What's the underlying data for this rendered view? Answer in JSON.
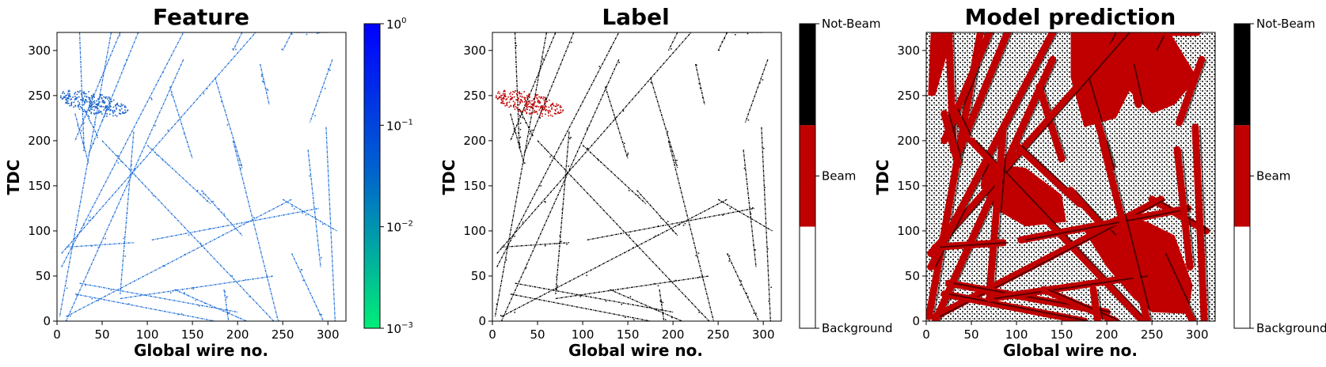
{
  "chart_data": [
    {
      "type": "heatmap",
      "title": "Feature",
      "xlabel": "Global wire no.",
      "ylabel": "TDC",
      "xlim": [
        0,
        320
      ],
      "ylim": [
        0,
        320
      ],
      "xticks": [
        "0",
        "50",
        "100",
        "150",
        "200",
        "250",
        "300"
      ],
      "yticks": [
        "0",
        "50",
        "100",
        "150",
        "200",
        "250",
        "300"
      ],
      "colorbar": {
        "scale": "log",
        "range": [
          0.001,
          1
        ],
        "ticks": [
          {
            "base": "10",
            "exp": "0"
          },
          {
            "base": "10",
            "exp": "−1"
          },
          {
            "base": "10",
            "exp": "−2"
          },
          {
            "base": "10",
            "exp": "−3"
          }
        ],
        "colors": [
          "#00ee77",
          "#0066cc",
          "#0000ff"
        ]
      },
      "hit_color": "#1f6fd8"
    },
    {
      "type": "heatmap",
      "title": "Label",
      "xlabel": "Global wire no.",
      "ylabel": "TDC",
      "xlim": [
        0,
        320
      ],
      "ylim": [
        0,
        320
      ],
      "xticks": [
        "0",
        "50",
        "100",
        "150",
        "200",
        "250",
        "300"
      ],
      "yticks": [
        "0",
        "50",
        "100",
        "150",
        "200",
        "250",
        "300"
      ],
      "colorbar": {
        "categories": [
          {
            "label": "Not-Beam",
            "color": "#000000"
          },
          {
            "label": "Beam",
            "color": "#c00000"
          },
          {
            "label": "Background",
            "color": "#ffffff"
          }
        ]
      }
    },
    {
      "type": "heatmap",
      "title": "Model prediction",
      "xlabel": "Global wire no.",
      "ylabel": "TDC",
      "xlim": [
        0,
        320
      ],
      "ylim": [
        0,
        320
      ],
      "xticks": [
        "0",
        "50",
        "100",
        "150",
        "200",
        "250",
        "300"
      ],
      "yticks": [
        "0",
        "50",
        "100",
        "150",
        "200",
        "250",
        "300"
      ],
      "colorbar": {
        "categories": [
          {
            "label": "Not-Beam",
            "color": "#000000"
          },
          {
            "label": "Beam",
            "color": "#c00000"
          },
          {
            "label": "Background",
            "color": "#ffffff"
          }
        ]
      }
    }
  ],
  "tracks": [
    {
      "from": [
        25,
        320
      ],
      "to": [
        30,
        190
      ]
    },
    {
      "from": [
        60,
        320
      ],
      "to": [
        3,
        5
      ]
    },
    {
      "from": [
        70,
        320
      ],
      "to": [
        20,
        200
      ]
    },
    {
      "from": [
        90,
        320
      ],
      "to": [
        35,
        185
      ]
    },
    {
      "from": [
        140,
        290
      ],
      "to": [
        10,
        0
      ]
    },
    {
      "from": [
        125,
        260
      ],
      "to": [
        150,
        180
      ]
    },
    {
      "from": [
        175,
        270
      ],
      "to": [
        205,
        170
      ]
    },
    {
      "from": [
        225,
        285
      ],
      "to": [
        235,
        240
      ]
    },
    {
      "from": [
        305,
        290
      ],
      "to": [
        280,
        220
      ]
    },
    {
      "from": [
        260,
        320
      ],
      "to": [
        250,
        300
      ]
    },
    {
      "from": [
        205,
        320
      ],
      "to": [
        195,
        300
      ]
    },
    {
      "from": [
        20,
        230
      ],
      "to": [
        35,
        175
      ]
    },
    {
      "from": [
        30,
        235
      ],
      "to": [
        45,
        205
      ]
    },
    {
      "from": [
        5,
        75
      ],
      "to": [
        220,
        320
      ]
    },
    {
      "from": [
        5,
        60
      ],
      "to": [
        140,
        320
      ]
    },
    {
      "from": [
        50,
        200
      ],
      "to": [
        240,
        0
      ]
    },
    {
      "from": [
        85,
        210
      ],
      "to": [
        70,
        30
      ]
    },
    {
      "from": [
        100,
        195
      ],
      "to": [
        170,
        130
      ]
    },
    {
      "from": [
        160,
        145
      ],
      "to": [
        205,
        95
      ]
    },
    {
      "from": [
        250,
        135
      ],
      "to": [
        310,
        100
      ]
    },
    {
      "from": [
        10,
        5
      ],
      "to": [
        260,
        135
      ]
    },
    {
      "from": [
        105,
        90
      ],
      "to": [
        290,
        125
      ]
    },
    {
      "from": [
        10,
        82
      ],
      "to": [
        85,
        87
      ]
    },
    {
      "from": [
        25,
        42
      ],
      "to": [
        200,
        10
      ]
    },
    {
      "from": [
        20,
        30
      ],
      "to": [
        175,
        0
      ]
    },
    {
      "from": [
        70,
        25
      ],
      "to": [
        240,
        50
      ]
    },
    {
      "from": [
        130,
        35
      ],
      "to": [
        210,
        0
      ]
    },
    {
      "from": [
        195,
        200
      ],
      "to": [
        245,
        0
      ]
    },
    {
      "from": [
        278,
        190
      ],
      "to": [
        292,
        60
      ]
    },
    {
      "from": [
        298,
        215
      ],
      "to": [
        308,
        0
      ]
    },
    {
      "from": [
        260,
        75
      ],
      "to": [
        295,
        0
      ]
    },
    {
      "from": [
        185,
        35
      ],
      "to": [
        190,
        0
      ]
    },
    {
      "from": [
        265,
        320
      ],
      "to": [
        300,
        320
      ]
    }
  ],
  "beam_blob": {
    "center": [
      40,
      242
    ],
    "rx": 38,
    "ry": 12,
    "tilt": -0.22
  },
  "colors": {
    "background": "#ffffff",
    "notbeam": "#000000",
    "beam": "#c00000"
  }
}
